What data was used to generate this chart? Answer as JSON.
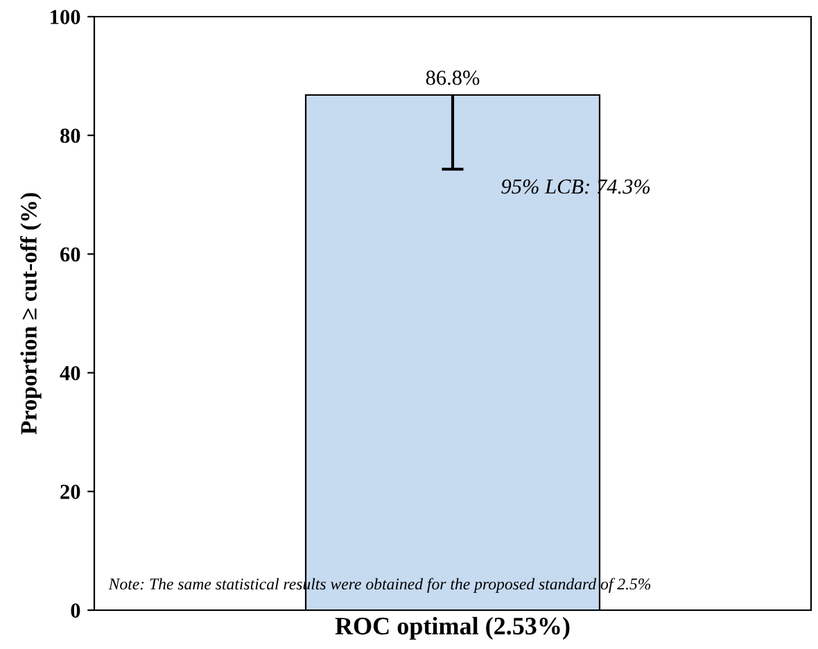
{
  "chart_data": {
    "type": "bar",
    "ylabel": "Proportion ≥ cut-off (%)",
    "categories": [
      "ROC optimal (2.53%)"
    ],
    "values": [
      86.8
    ],
    "value_labels": [
      "86.8%"
    ],
    "colors": [
      "#c6daf0"
    ],
    "errors": [
      [
        74.3,
        86.8
      ]
    ],
    "ylim": [
      0,
      100
    ],
    "yticks": [
      0,
      20,
      40,
      60,
      80,
      100
    ],
    "grid": false,
    "annotations": [
      {
        "text": "95% LCB: 74.3%",
        "x": "ROC optimal (2.53%)",
        "y": 74.3
      },
      "Note: The same statistical results were obtained for the proposed standard of 2.5%"
    ]
  }
}
